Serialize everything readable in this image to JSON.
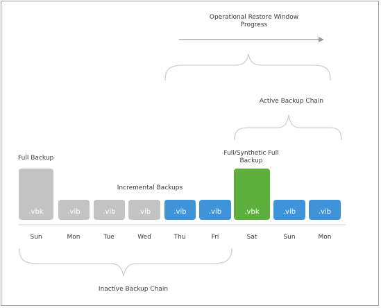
{
  "labels": {
    "restore_window_line1": "Operational Restore Window",
    "restore_window_line2": "Progress",
    "active_chain": "Active Backup Chain",
    "inactive_chain": "Inactive Backup Chain",
    "full_backup": "Full Backup",
    "full_synthetic_line1": "Full/Synthetic Full",
    "full_synthetic_line2": "Backup",
    "incremental_backups": "Incremental Backups"
  },
  "blocks": [
    {
      "day": "Sun",
      "file": ".vbk",
      "type": "full"
    },
    {
      "day": "Mon",
      "file": ".vib",
      "type": "incremental"
    },
    {
      "day": "Tue",
      "file": ".vib",
      "type": "incremental"
    },
    {
      "day": "Wed",
      "file": ".vib",
      "type": "incremental"
    },
    {
      "day": "Thu",
      "file": ".vib",
      "type": "incremental"
    },
    {
      "day": "Fri",
      "file": ".vib",
      "type": "incremental"
    },
    {
      "day": "Sat",
      "file": ".vbk",
      "type": "full"
    },
    {
      "day": "Sun",
      "file": ".vib",
      "type": "incremental"
    },
    {
      "day": "Mon",
      "file": ".vib",
      "type": "incremental"
    }
  ],
  "colors": {
    "inactive": "#c3c3c3",
    "active_incremental": "#3f93d8",
    "active_full": "#5eb03e",
    "brace": "#cfcfcf",
    "arrow": "#9a9a9a"
  }
}
